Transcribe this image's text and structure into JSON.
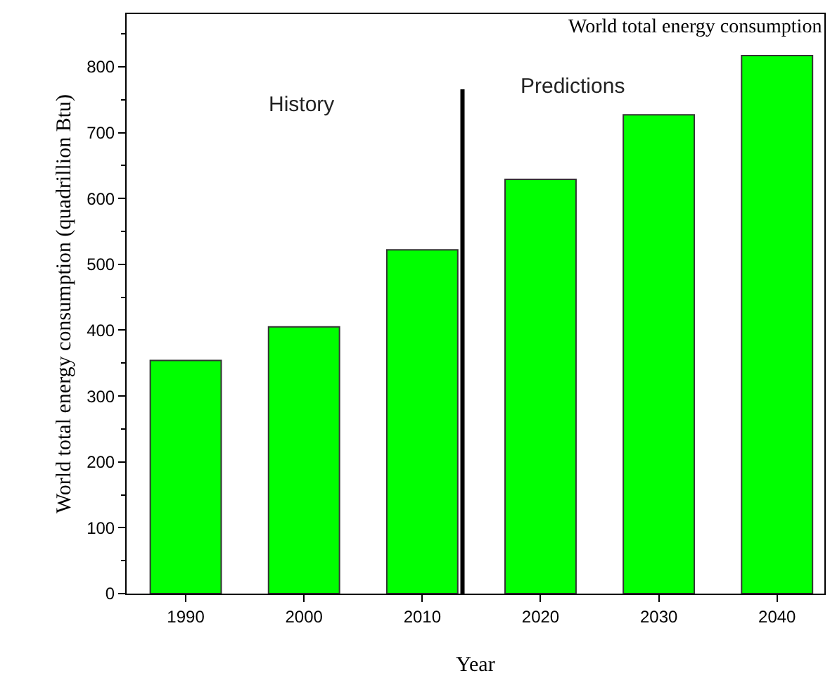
{
  "chart_data": {
    "type": "bar",
    "title": "World total energy consumption",
    "xlabel": "Year",
    "ylabel": "World total energy consumption (quadrillion Btu)",
    "x": [
      1990,
      2000,
      2010,
      2020,
      2030,
      2040
    ],
    "values": [
      354,
      405,
      522,
      629,
      727,
      817
    ],
    "color": "#00ff00",
    "xlim": [
      1985,
      2044
    ],
    "xticks": [
      1990,
      2000,
      2010,
      2020,
      2030,
      2040
    ],
    "ylim": [
      0,
      880
    ],
    "yticks": [
      0,
      100,
      200,
      300,
      400,
      500,
      600,
      700,
      800
    ],
    "ref_lines": [
      {
        "axis": "x",
        "value": 2013.4,
        "color": "#000000"
      }
    ],
    "annotations": [
      "History",
      "Predictions"
    ],
    "grid": false,
    "legend": false
  }
}
